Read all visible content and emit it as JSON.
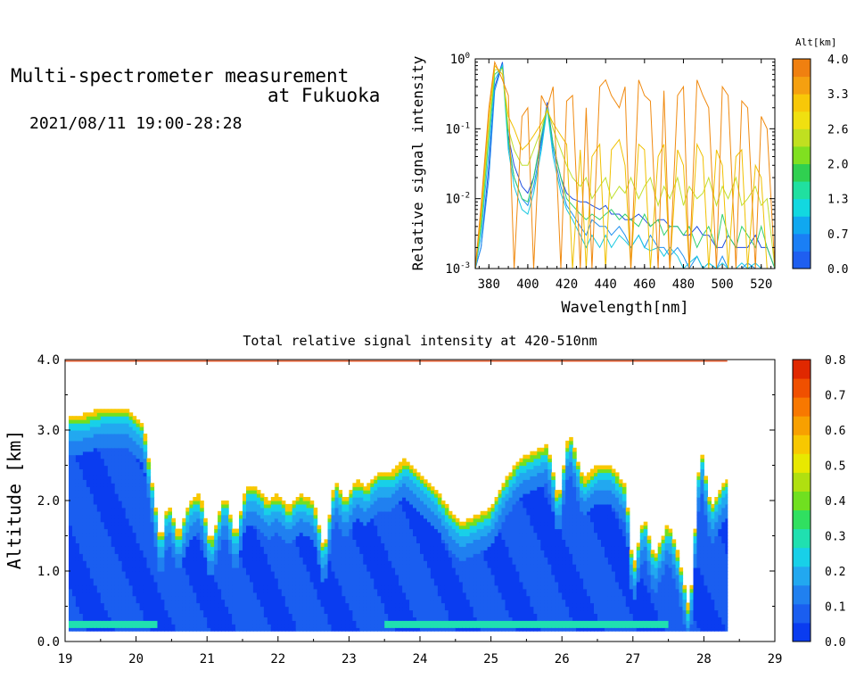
{
  "header": {
    "title_line1": "Multi-spectrometer measurement",
    "title_line2": "at Fukuoka",
    "datetime": "2021/08/11 19:00-28:28"
  },
  "chart_data": [
    {
      "type": "line",
      "title": "",
      "xlabel": "Wavelength[nm]",
      "ylabel": "Relative signal intensity",
      "yscale": "log",
      "xlim": [
        373,
        527
      ],
      "ylim": [
        0.001,
        1
      ],
      "x_ticks": [
        "380",
        "400",
        "420",
        "440",
        "460",
        "480",
        "500",
        "520"
      ],
      "y_ticks": [
        "10^-3",
        "10^-2",
        "10^-1",
        "10^0"
      ],
      "colorbar": {
        "title": "Alt[km]",
        "ticks": [
          "0.0",
          "0.7",
          "1.3",
          "2.0",
          "2.6",
          "3.3",
          "4.0"
        ],
        "colors": [
          "#1f5ff0",
          "#1a7ff5",
          "#10a8f0",
          "#12d8e0",
          "#20e0a0",
          "#30d050",
          "#80e020",
          "#c0e020",
          "#f0e010",
          "#f8c808",
          "#f5a010",
          "#f08010"
        ]
      },
      "series": [
        {
          "color": "#1f4fe0",
          "x": [
            373,
            376,
            380,
            383,
            387,
            390,
            393,
            397,
            400,
            403,
            407,
            410,
            413,
            417,
            420,
            423,
            427,
            430,
            433,
            437,
            440,
            443,
            447,
            450,
            453,
            457,
            460,
            463,
            467,
            470,
            473,
            477,
            480,
            483,
            487,
            490,
            493,
            497,
            500,
            503,
            507,
            510,
            513,
            517,
            520,
            523,
            527
          ],
          "y": [
            0.001,
            0.002,
            0.03,
            0.4,
            0.9,
            0.08,
            0.03,
            0.015,
            0.012,
            0.02,
            0.07,
            0.24,
            0.06,
            0.02,
            0.012,
            0.01,
            0.009,
            0.009,
            0.008,
            0.007,
            0.008,
            0.006,
            0.006,
            0.005,
            0.005,
            0.006,
            0.005,
            0.004,
            0.005,
            0.005,
            0.004,
            0.004,
            0.003,
            0.003,
            0.004,
            0.003,
            0.003,
            0.002,
            0.002,
            0.003,
            0.002,
            0.002,
            0.002,
            0.003,
            0.002,
            0.002,
            0.001
          ]
        },
        {
          "color": "#2090f0",
          "x": [
            373,
            376,
            380,
            383,
            387,
            390,
            393,
            397,
            400,
            403,
            407,
            410,
            413,
            417,
            420,
            423,
            427,
            430,
            433,
            437,
            440,
            443,
            447,
            450,
            453,
            457,
            460,
            463,
            467,
            470,
            473,
            477,
            480,
            483,
            487,
            490,
            493,
            497,
            500,
            503,
            507,
            510,
            513,
            517,
            520,
            523,
            527
          ],
          "y": [
            0.001,
            0.002,
            0.02,
            0.35,
            0.85,
            0.06,
            0.02,
            0.01,
            0.008,
            0.015,
            0.06,
            0.22,
            0.05,
            0.015,
            0.008,
            0.006,
            0.004,
            0.003,
            0.005,
            0.004,
            0.004,
            0.003,
            0.004,
            0.003,
            0.002,
            0.003,
            0.002,
            0.003,
            0.002,
            0.002,
            0.0015,
            0.002,
            0.0015,
            0.001,
            0.0015,
            0.001,
            0.0012,
            0.001,
            0.0015,
            0.001,
            0.001,
            0.001,
            0.0012,
            0.001,
            0.001,
            0.001,
            0.001
          ]
        },
        {
          "color": "#18c8e0",
          "x": [
            373,
            376,
            380,
            383,
            387,
            390,
            393,
            397,
            400,
            403,
            407,
            410,
            413,
            417,
            420,
            423,
            427,
            430,
            433,
            437,
            440,
            443,
            447,
            450,
            453,
            457,
            460,
            463,
            467,
            470,
            473,
            477,
            480,
            483,
            487,
            490,
            493,
            497,
            500,
            503,
            507,
            510,
            513,
            517,
            520,
            523,
            527
          ],
          "y": [
            0.001,
            0.003,
            0.05,
            0.5,
            0.8,
            0.05,
            0.015,
            0.007,
            0.006,
            0.012,
            0.05,
            0.2,
            0.04,
            0.012,
            0.007,
            0.005,
            0.003,
            0.002,
            0.003,
            0.002,
            0.003,
            0.002,
            0.003,
            0.0025,
            0.002,
            0.003,
            0.002,
            0.0018,
            0.002,
            0.0015,
            0.002,
            0.0015,
            0.001,
            0.0012,
            0.0015,
            0.001,
            0.0012,
            0.001,
            0.0012,
            0.001,
            0.001,
            0.0012,
            0.001,
            0.0012,
            0.001,
            0.001,
            0.001
          ]
        },
        {
          "color": "#30d070",
          "x": [
            373,
            376,
            380,
            383,
            387,
            390,
            393,
            397,
            400,
            403,
            407,
            410,
            413,
            417,
            420,
            423,
            427,
            430,
            433,
            437,
            440,
            443,
            447,
            450,
            453,
            457,
            460,
            463,
            467,
            470,
            473,
            477,
            480,
            483,
            487,
            490,
            493,
            497,
            500,
            503,
            507,
            510,
            513,
            517,
            520,
            523,
            527
          ],
          "y": [
            0.001,
            0.004,
            0.08,
            0.6,
            0.75,
            0.07,
            0.02,
            0.01,
            0.009,
            0.02,
            0.08,
            0.2,
            0.06,
            0.02,
            0.01,
            0.008,
            0.006,
            0.005,
            0.006,
            0.005,
            0.006,
            0.007,
            0.005,
            0.006,
            0.005,
            0.004,
            0.006,
            0.004,
            0.005,
            0.003,
            0.004,
            0.004,
            0.003,
            0.004,
            0.002,
            0.003,
            0.004,
            0.002,
            0.006,
            0.003,
            0.002,
            0.004,
            0.003,
            0.002,
            0.004,
            0.002,
            0.001
          ]
        },
        {
          "color": "#c0e030",
          "x": [
            373,
            376,
            380,
            383,
            387,
            390,
            393,
            397,
            400,
            403,
            407,
            410,
            413,
            417,
            420,
            423,
            427,
            430,
            433,
            437,
            440,
            443,
            447,
            450,
            453,
            457,
            460,
            463,
            467,
            470,
            473,
            477,
            480,
            483,
            487,
            490,
            493,
            497,
            500,
            503,
            507,
            510,
            513,
            517,
            520,
            523,
            527
          ],
          "y": [
            0.001,
            0.005,
            0.1,
            0.7,
            0.7,
            0.1,
            0.05,
            0.03,
            0.03,
            0.05,
            0.1,
            0.2,
            0.1,
            0.05,
            0.03,
            0.02,
            0.015,
            0.02,
            0.01,
            0.015,
            0.02,
            0.01,
            0.015,
            0.012,
            0.02,
            0.01,
            0.015,
            0.02,
            0.008,
            0.015,
            0.01,
            0.02,
            0.008,
            0.015,
            0.01,
            0.012,
            0.02,
            0.008,
            0.015,
            0.01,
            0.02,
            0.008,
            0.01,
            0.015,
            0.008,
            0.01,
            0.001
          ]
        },
        {
          "color": "#f0c000",
          "x": [
            373,
            376,
            380,
            383,
            387,
            390,
            393,
            397,
            400,
            403,
            407,
            410,
            413,
            417,
            420,
            423,
            427,
            430,
            433,
            437,
            440,
            443,
            447,
            450,
            453,
            457,
            460,
            463,
            467,
            470,
            473,
            477,
            480,
            483,
            487,
            490,
            493,
            497,
            500,
            503,
            507,
            510,
            513,
            517,
            520,
            523,
            527
          ],
          "y": [
            0.001,
            0.006,
            0.15,
            0.8,
            0.6,
            0.15,
            0.1,
            0.05,
            0.06,
            0.08,
            0.12,
            0.18,
            0.12,
            0.08,
            0.06,
            0.001,
            0.05,
            0.001,
            0.04,
            0.06,
            0.001,
            0.05,
            0.07,
            0.03,
            0.001,
            0.06,
            0.05,
            0.001,
            0.04,
            0.06,
            0.001,
            0.05,
            0.03,
            0.001,
            0.06,
            0.04,
            0.001,
            0.05,
            0.03,
            0.001,
            0.04,
            0.05,
            0.001,
            0.03,
            0.02,
            0.001,
            0.001
          ]
        },
        {
          "color": "#f08a10",
          "x": [
            373,
            376,
            380,
            383,
            387,
            390,
            393,
            397,
            400,
            403,
            407,
            410,
            413,
            417,
            420,
            423,
            427,
            430,
            433,
            437,
            440,
            443,
            447,
            450,
            453,
            457,
            460,
            463,
            467,
            470,
            473,
            477,
            480,
            483,
            487,
            490,
            493,
            497,
            500,
            503,
            507,
            510,
            513,
            517,
            520,
            523,
            527
          ],
          "y": [
            0.001,
            0.008,
            0.2,
            0.9,
            0.5,
            0.3,
            0.001,
            0.15,
            0.2,
            0.001,
            0.3,
            0.2,
            0.4,
            0.001,
            0.25,
            0.3,
            0.001,
            0.2,
            0.001,
            0.4,
            0.5,
            0.3,
            0.2,
            0.4,
            0.001,
            0.5,
            0.3,
            0.25,
            0.001,
            0.35,
            0.001,
            0.3,
            0.4,
            0.001,
            0.5,
            0.3,
            0.2,
            0.001,
            0.4,
            0.3,
            0.001,
            0.25,
            0.2,
            0.001,
            0.15,
            0.1,
            0.001
          ]
        }
      ]
    },
    {
      "type": "heatmap",
      "title": "Total relative signal intensity at 420-510nm",
      "xlabel": "",
      "ylabel": "Altitude [km]",
      "xlim": [
        19,
        29
      ],
      "ylim": [
        0,
        4
      ],
      "x_ticks": [
        "19",
        "20",
        "21",
        "22",
        "23",
        "24",
        "25",
        "26",
        "27",
        "28",
        "29"
      ],
      "y_ticks": [
        "0.0",
        "1.0",
        "2.0",
        "3.0",
        "4.0"
      ],
      "data_end_time": 28.33,
      "boundary_times": [
        19.2,
        19.5,
        19.9,
        20.1,
        20.35,
        20.45,
        20.6,
        20.75,
        20.9,
        21.05,
        21.25,
        21.4,
        21.55,
        21.7,
        21.85,
        22.0,
        22.15,
        22.3,
        22.5,
        22.65,
        22.8,
        22.95,
        23.1,
        23.25,
        23.4,
        23.6,
        23.8,
        24.0,
        24.2,
        24.4,
        24.6,
        24.8,
        25.0,
        25.2,
        25.4,
        25.6,
        25.8,
        25.95,
        26.1,
        26.3,
        26.5,
        26.7,
        26.9,
        27.0,
        27.15,
        27.3,
        27.5,
        27.65,
        27.8,
        27.95,
        28.1,
        28.3
      ],
      "boundary_alt": [
        3.2,
        3.3,
        3.3,
        3.1,
        1.4,
        2.0,
        1.5,
        2.0,
        2.1,
        1.4,
        2.1,
        1.5,
        2.2,
        2.2,
        2.0,
        2.1,
        1.9,
        2.1,
        2.0,
        1.3,
        2.3,
        2.0,
        2.3,
        2.2,
        2.4,
        2.4,
        2.6,
        2.4,
        2.2,
        1.9,
        1.7,
        1.8,
        1.9,
        2.3,
        2.6,
        2.7,
        2.8,
        2.0,
        3.0,
        2.3,
        2.5,
        2.5,
        2.2,
        1.0,
        1.8,
        1.2,
        1.7,
        1.2,
        0.4,
        2.8,
        1.9,
        2.3
      ],
      "colorbar": {
        "ticks": [
          "0.0",
          "0.1",
          "0.2",
          "0.3",
          "0.4",
          "0.5",
          "0.6",
          "0.7",
          "0.8"
        ],
        "colors": [
          "#0a3cf0",
          "#1a5ef0",
          "#2080f0",
          "#22a8f0",
          "#18d0e8",
          "#20e0b0",
          "#30e060",
          "#70e020",
          "#b0e010",
          "#e8e800",
          "#f8c800",
          "#f8a000",
          "#f87800",
          "#f05000",
          "#e02800"
        ]
      }
    }
  ]
}
